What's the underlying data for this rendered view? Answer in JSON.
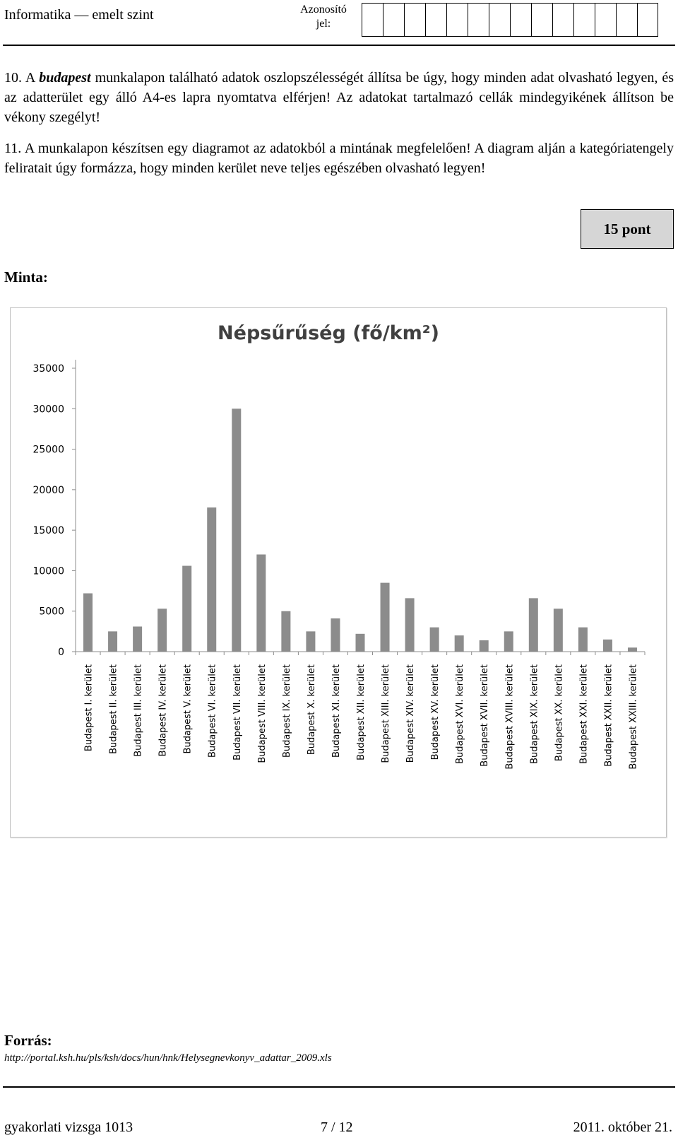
{
  "header": {
    "subject": "Informatika — emelt szint",
    "id_label_line1": "Azonosító",
    "id_label_line2": "jel:",
    "id_box_count": 14
  },
  "task10": {
    "number": "10.",
    "word_a": "A",
    "sheet_name": "budapest",
    "text_rest": "munkalapon található adatok oszlopszélességét állítsa be úgy, hogy minden adat olvasható legyen, és az adatterület egy álló A4-es lapra nyomtatva elférjen! Az adatokat tartalmazó cellák mindegyikének állítson be vékony szegélyt!"
  },
  "task11": {
    "number": "11.",
    "text": "A munkalapon készítsen egy diagramot az adatokból a mintának megfelelően! A diagram alján a kategóriatengely feliratait úgy formázza, hogy minden kerület neve teljes egészében olvasható legyen!"
  },
  "points_label": "15 pont",
  "minta_label": "Minta:",
  "chart_data": {
    "type": "bar",
    "title": "Népsűrűség (fő/km²)",
    "xlabel": "",
    "ylabel": "",
    "ylim": [
      0,
      35000
    ],
    "y_ticks": [
      "0",
      "5000",
      "10000",
      "15000",
      "20000",
      "25000",
      "30000",
      "35000"
    ],
    "grid": false,
    "legend": "none",
    "bar_color": "#8c8c8c",
    "categories": [
      "Budapest I. kerület",
      "Budapest II. kerület",
      "Budapest III. kerület",
      "Budapest IV. kerület",
      "Budapest V. kerület",
      "Budapest VI. kerület",
      "Budapest VII. kerület",
      "Budapest VIII. kerület",
      "Budapest IX. kerület",
      "Budapest X. kerület",
      "Budapest XI. kerület",
      "Budapest XII. kerület",
      "Budapest XIII. kerület",
      "Budapest XIV. kerület",
      "Budapest XV. kerület",
      "Budapest XVI. kerület",
      "Budapest XVII. kerület",
      "Budapest XVIII. kerület",
      "Budapest XIX. kerület",
      "Budapest XX. kerület",
      "Budapest XXI. kerület",
      "Budapest XXII. kerület",
      "Budapest XXIII. kerület"
    ],
    "values": [
      7200,
      2500,
      3100,
      5300,
      10600,
      17800,
      30000,
      12000,
      5000,
      2500,
      4100,
      2200,
      8500,
      6600,
      3000,
      2000,
      1400,
      2500,
      6600,
      5300,
      3000,
      1500,
      500
    ]
  },
  "source": {
    "label": "Forrás:",
    "url": "http://portal.ksh.hu/pls/ksh/docs/hun/hnk/Helysegnevkonyv_adattar_2009.xls"
  },
  "footer": {
    "left": "gyakorlati vizsga 1013",
    "center": "7 / 12",
    "right": "2011. október 21."
  }
}
